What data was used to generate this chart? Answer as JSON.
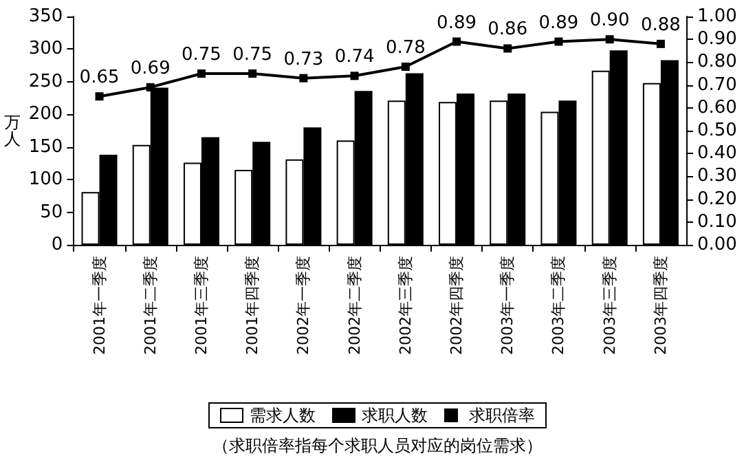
{
  "chart_data": {
    "type": "bar",
    "ylabel": "万人",
    "categories": [
      "2001年一季度",
      "2001年二季度",
      "2001年三季度",
      "2001年四季度",
      "2002年一季度",
      "2002年二季度",
      "2002年三季度",
      "2002年四季度",
      "2003年一季度",
      "2003年二季度",
      "2003年三季度",
      "2003年四季度"
    ],
    "series": [
      {
        "name": "需求人数",
        "color": "#ffffff",
        "values": [
          81,
          153,
          126,
          115,
          131,
          160,
          221,
          219,
          221,
          204,
          267,
          248
        ]
      },
      {
        "name": "求职人数",
        "color": "#000000",
        "values": [
          138,
          241,
          165,
          158,
          180,
          236,
          263,
          232,
          232,
          221,
          298,
          283
        ]
      },
      {
        "name": "求职倍率",
        "type": "line",
        "axis": "y2",
        "color": "#000000",
        "values": [
          0.65,
          0.69,
          0.75,
          0.75,
          0.73,
          0.74,
          0.78,
          0.89,
          0.86,
          0.89,
          0.9,
          0.88
        ],
        "value_labels": [
          "0.65",
          "0.69",
          "0.75",
          "0.75",
          "0.73",
          "0.74",
          "0.78",
          "0.89",
          "0.86",
          "0.89",
          "0.90",
          "0.88"
        ]
      }
    ],
    "ylim": [
      0,
      350
    ],
    "yticks": [
      0,
      50,
      100,
      150,
      200,
      250,
      300,
      350
    ],
    "y2lim": [
      0,
      1
    ],
    "y2ticks": [
      {
        "value": 0,
        "label": "0.00"
      },
      {
        "value": 0.1,
        "label": "0.10"
      },
      {
        "value": 0.2,
        "label": "0.20"
      },
      {
        "value": 0.3,
        "label": "0.30"
      },
      {
        "value": 0.4,
        "label": "0.40"
      },
      {
        "value": 0.5,
        "label": "0.50"
      },
      {
        "value": 0.6,
        "label": "0.60"
      },
      {
        "value": 0.7,
        "label": "0.70"
      },
      {
        "value": 0.8,
        "label": "0.80"
      },
      {
        "value": 0.9,
        "label": "0.90"
      },
      {
        "value": 1,
        "label": "1.00"
      }
    ],
    "annotations": [
      "（求职倍率指每个求职人员对应的岗位需求）"
    ],
    "legend": "bottom",
    "grid": false,
    "marker": "square",
    "line_style": "solid"
  }
}
